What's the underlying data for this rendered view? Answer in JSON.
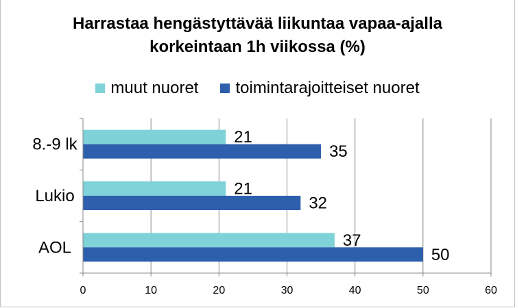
{
  "chart_data": {
    "type": "bar",
    "orientation": "horizontal",
    "title_lines": [
      "Harrastaa hengästyttävää liikuntaa vapaa-ajalla",
      "korkeintaan 1h viikossa (%)"
    ],
    "categories": [
      "8.-9 lk",
      "Lukio",
      "AOL"
    ],
    "series": [
      {
        "name": "muut nuoret",
        "color": "#7fd3d8",
        "values": [
          21,
          21,
          37
        ]
      },
      {
        "name": "toimintarajoitteiset nuoret",
        "color": "#2e5fad",
        "values": [
          35,
          32,
          50
        ]
      }
    ],
    "xlim": [
      0,
      60
    ],
    "xticks": [
      0,
      10,
      20,
      30,
      40,
      50,
      60
    ],
    "grid": true,
    "legend_position": "top"
  }
}
